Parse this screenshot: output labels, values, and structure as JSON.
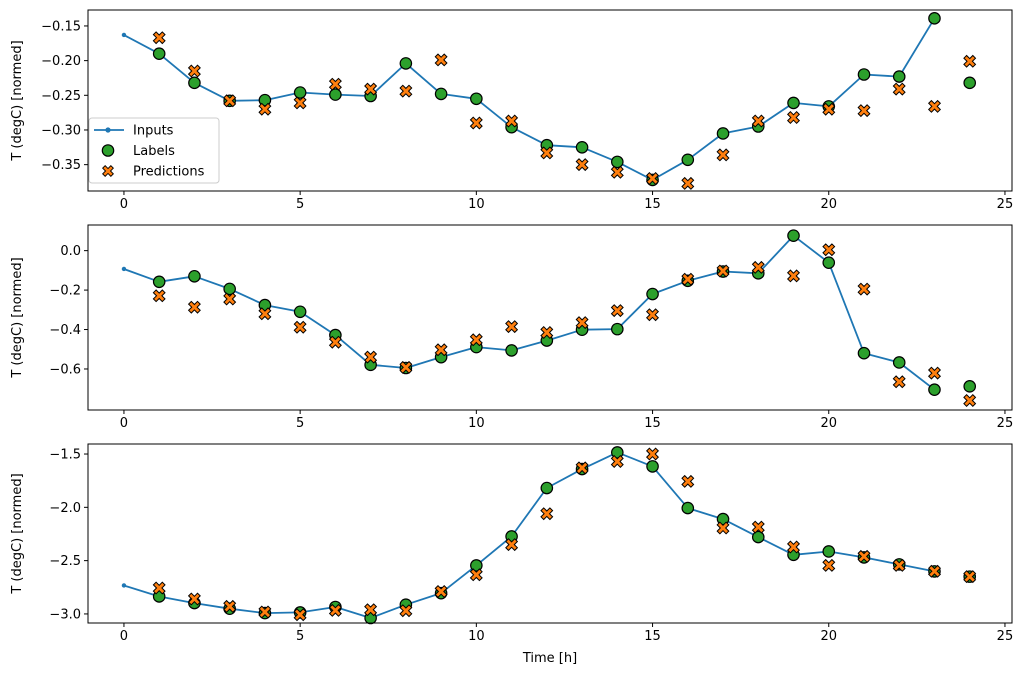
{
  "figure": {
    "kind": "matplotlib-3-panel-time-series",
    "background": "#ffffff",
    "legend_entries": [
      "Inputs",
      "Labels",
      "Predictions"
    ],
    "colors": {
      "inputs": "#1f77b4",
      "labels": "#2ca02c",
      "predictions": "#ff7f0e",
      "marker_edge": "#000000"
    }
  },
  "chart_data": [
    {
      "type": "line",
      "title": "",
      "xlabel": "",
      "ylabel": "T (degC) [normed]",
      "xlim": [
        -1.02,
        25.2
      ],
      "ylim": [
        -0.388,
        -0.127
      ],
      "grid": false,
      "legend": {
        "position": "center left",
        "entries": [
          "Inputs",
          "Labels",
          "Predictions"
        ]
      },
      "xticks": {
        "values": [
          0,
          5,
          10,
          15,
          20,
          25
        ],
        "labels": [
          "0",
          "5",
          "10",
          "15",
          "20",
          "25"
        ]
      },
      "yticks": {
        "values": [
          -0.15,
          -0.2,
          -0.25,
          -0.3,
          -0.35
        ],
        "labels": [
          "−0.15",
          "−0.20",
          "−0.25",
          "−0.30",
          "−0.35"
        ]
      },
      "series": [
        {
          "name": "Inputs",
          "marker": "line-dot",
          "color": "#1f77b4",
          "x": [
            0,
            1,
            2,
            3,
            4,
            5,
            6,
            7,
            8,
            9,
            10,
            11,
            12,
            13,
            14,
            15,
            16,
            17,
            18,
            19,
            20,
            21,
            22,
            23
          ],
          "y": [
            -0.163,
            -0.19,
            -0.232,
            -0.258,
            -0.257,
            -0.246,
            -0.249,
            -0.251,
            -0.204,
            -0.248,
            -0.255,
            -0.296,
            -0.322,
            -0.325,
            -0.346,
            -0.372,
            -0.343,
            -0.305,
            -0.295,
            -0.261,
            -0.266,
            -0.22,
            -0.223,
            -0.139
          ]
        },
        {
          "name": "Labels",
          "marker": "circle",
          "color": "#2ca02c",
          "edge": "#000000",
          "x": [
            1,
            2,
            3,
            4,
            5,
            6,
            7,
            8,
            9,
            10,
            11,
            12,
            13,
            14,
            15,
            16,
            17,
            18,
            19,
            20,
            21,
            22,
            23,
            24
          ],
          "y": [
            -0.19,
            -0.232,
            -0.258,
            -0.257,
            -0.246,
            -0.249,
            -0.251,
            -0.204,
            -0.248,
            -0.255,
            -0.296,
            -0.322,
            -0.325,
            -0.346,
            -0.372,
            -0.343,
            -0.305,
            -0.295,
            -0.261,
            -0.266,
            -0.22,
            -0.223,
            -0.139,
            -0.232
          ]
        },
        {
          "name": "Predictions",
          "marker": "X",
          "color": "#ff7f0e",
          "edge": "#000000",
          "x": [
            1,
            2,
            3,
            4,
            5,
            6,
            7,
            8,
            9,
            10,
            11,
            12,
            13,
            14,
            15,
            16,
            17,
            18,
            19,
            20,
            21,
            22,
            23,
            24
          ],
          "y": [
            -0.167,
            -0.215,
            -0.258,
            -0.27,
            -0.261,
            -0.234,
            -0.241,
            -0.244,
            -0.199,
            -0.29,
            -0.287,
            -0.333,
            -0.35,
            -0.361,
            -0.37,
            -0.377,
            -0.336,
            -0.287,
            -0.282,
            -0.27,
            -0.272,
            -0.241,
            -0.266,
            -0.201
          ]
        }
      ]
    },
    {
      "type": "line",
      "title": "",
      "xlabel": "",
      "ylabel": "T (degC) [normed]",
      "xlim": [
        -1.02,
        25.2
      ],
      "ylim": [
        -0.808,
        0.13
      ],
      "grid": false,
      "legend": null,
      "xticks": {
        "values": [
          0,
          5,
          10,
          15,
          20,
          25
        ],
        "labels": [
          "0",
          "5",
          "10",
          "15",
          "20",
          "25"
        ]
      },
      "yticks": {
        "values": [
          0.0,
          -0.2,
          -0.4,
          -0.6
        ],
        "labels": [
          "0.0",
          "−0.2",
          "−0.4",
          "−0.6"
        ]
      },
      "series": [
        {
          "name": "Inputs",
          "marker": "line-dot",
          "color": "#1f77b4",
          "x": [
            0,
            1,
            2,
            3,
            4,
            5,
            6,
            7,
            8,
            9,
            10,
            11,
            12,
            13,
            14,
            15,
            16,
            17,
            18,
            19,
            20,
            21,
            22,
            23
          ],
          "y": [
            -0.093,
            -0.158,
            -0.13,
            -0.194,
            -0.276,
            -0.31,
            -0.428,
            -0.579,
            -0.595,
            -0.54,
            -0.489,
            -0.506,
            -0.456,
            -0.401,
            -0.398,
            -0.22,
            -0.153,
            -0.106,
            -0.115,
            0.076,
            -0.061,
            -0.52,
            -0.567,
            -0.705
          ]
        },
        {
          "name": "Labels",
          "marker": "circle",
          "color": "#2ca02c",
          "edge": "#000000",
          "x": [
            1,
            2,
            3,
            4,
            5,
            6,
            7,
            8,
            9,
            10,
            11,
            12,
            13,
            14,
            15,
            16,
            17,
            18,
            19,
            20,
            21,
            22,
            23,
            24
          ],
          "y": [
            -0.158,
            -0.13,
            -0.194,
            -0.276,
            -0.31,
            -0.428,
            -0.579,
            -0.595,
            -0.54,
            -0.489,
            -0.506,
            -0.456,
            -0.401,
            -0.398,
            -0.22,
            -0.153,
            -0.106,
            -0.115,
            0.076,
            -0.061,
            -0.52,
            -0.567,
            -0.705,
            -0.688
          ]
        },
        {
          "name": "Predictions",
          "marker": "X",
          "color": "#ff7f0e",
          "edge": "#000000",
          "x": [
            1,
            2,
            3,
            4,
            5,
            6,
            7,
            8,
            9,
            10,
            11,
            12,
            13,
            14,
            15,
            16,
            17,
            18,
            19,
            20,
            21,
            22,
            23,
            24
          ],
          "y": [
            -0.229,
            -0.287,
            -0.245,
            -0.32,
            -0.388,
            -0.464,
            -0.54,
            -0.592,
            -0.503,
            -0.452,
            -0.385,
            -0.415,
            -0.365,
            -0.304,
            -0.325,
            -0.145,
            -0.103,
            -0.085,
            -0.128,
            0.005,
            -0.195,
            -0.665,
            -0.621,
            -0.76
          ]
        }
      ]
    },
    {
      "type": "line",
      "title": "",
      "xlabel": "Time [h]",
      "ylabel": "T (degC) [normed]",
      "xlim": [
        -1.02,
        25.2
      ],
      "ylim": [
        -3.085,
        -1.406
      ],
      "grid": false,
      "legend": null,
      "xticks": {
        "values": [
          0,
          5,
          10,
          15,
          20,
          25
        ],
        "labels": [
          "0",
          "5",
          "10",
          "15",
          "20",
          "25"
        ]
      },
      "yticks": {
        "values": [
          -1.5,
          -2.0,
          -2.5,
          -3.0
        ],
        "labels": [
          "−1.5",
          "−2.0",
          "−2.5",
          "−3.0"
        ]
      },
      "series": [
        {
          "name": "Inputs",
          "marker": "line-dot",
          "color": "#1f77b4",
          "x": [
            0,
            1,
            2,
            3,
            4,
            5,
            6,
            7,
            8,
            9,
            10,
            11,
            12,
            13,
            14,
            15,
            16,
            17,
            18,
            19,
            20,
            21,
            22,
            23
          ],
          "y": [
            -2.733,
            -2.836,
            -2.898,
            -2.951,
            -2.992,
            -2.986,
            -2.935,
            -3.038,
            -2.913,
            -2.805,
            -2.545,
            -2.273,
            -1.819,
            -1.641,
            -1.485,
            -1.616,
            -2.007,
            -2.11,
            -2.279,
            -2.445,
            -2.414,
            -2.47,
            -2.535,
            -2.601
          ]
        },
        {
          "name": "Labels",
          "marker": "circle",
          "color": "#2ca02c",
          "edge": "#000000",
          "x": [
            1,
            2,
            3,
            4,
            5,
            6,
            7,
            8,
            9,
            10,
            11,
            12,
            13,
            14,
            15,
            16,
            17,
            18,
            19,
            20,
            21,
            22,
            23,
            24
          ],
          "y": [
            -2.836,
            -2.898,
            -2.951,
            -2.992,
            -2.986,
            -2.935,
            -3.038,
            -2.913,
            -2.805,
            -2.545,
            -2.273,
            -1.819,
            -1.641,
            -1.485,
            -1.616,
            -2.007,
            -2.11,
            -2.279,
            -2.445,
            -2.414,
            -2.47,
            -2.535,
            -2.601,
            -2.65
          ]
        },
        {
          "name": "Predictions",
          "marker": "X",
          "color": "#ff7f0e",
          "edge": "#000000",
          "x": [
            1,
            2,
            3,
            4,
            5,
            6,
            7,
            8,
            9,
            10,
            11,
            12,
            13,
            14,
            15,
            16,
            17,
            18,
            19,
            20,
            21,
            22,
            23,
            24
          ],
          "y": [
            -2.757,
            -2.86,
            -2.929,
            -2.982,
            -3.007,
            -2.967,
            -2.96,
            -2.97,
            -2.79,
            -2.633,
            -2.35,
            -2.06,
            -1.63,
            -1.57,
            -1.5,
            -1.757,
            -2.194,
            -2.185,
            -2.372,
            -2.545,
            -2.46,
            -2.545,
            -2.6,
            -2.65
          ]
        }
      ]
    }
  ]
}
